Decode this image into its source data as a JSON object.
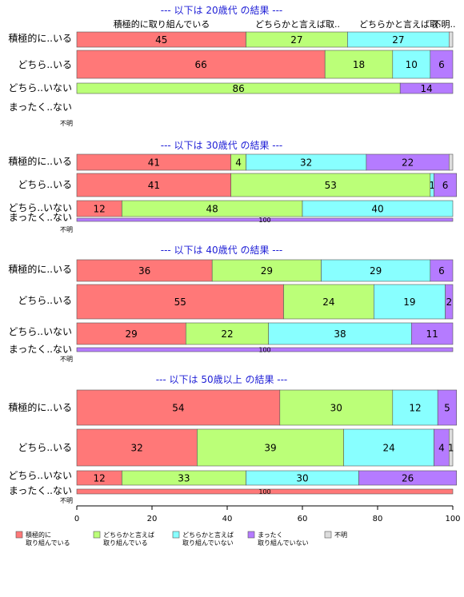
{
  "chart_data": {
    "type": "bar",
    "orientation": "horizontal",
    "stacked": true,
    "xlim": [
      0,
      100
    ],
    "x_ticks": [
      0,
      20,
      40,
      60,
      80,
      100
    ],
    "column_headers": [
      "積極的に取り組んでいる",
      "どちらかと言えば取..",
      "どちらかと言えば取..",
      "不明.."
    ],
    "categories": [
      "積極的に..いる",
      "どちら..いる",
      "どちら..いない",
      "まったく..ない",
      "不明"
    ],
    "legend": {
      "placement": "bottom",
      "entries": [
        {
          "line1": "積極的に",
          "line2": "取り組んでいる",
          "color": "#ff7878"
        },
        {
          "line1": "どちらかと言えば",
          "line2": "取り組んでいる",
          "color": "#bbff78"
        },
        {
          "line1": "どちらかと言えば",
          "line2": "取り組んでいない",
          "color": "#88ffff"
        },
        {
          "line1": "まったく",
          "line2": "取り組んでいない",
          "color": "#b57bff"
        },
        {
          "line1": "不明",
          "line2": "",
          "color": "#dddddd"
        }
      ]
    },
    "panels": [
      {
        "title": "--- 以下は 20歳代 の結果 ---",
        "rows": [
          {
            "values": [
              45,
              27,
              27,
              0,
              1
            ],
            "labels": [
              "45",
              "27",
              "27",
              "",
              ""
            ]
          },
          {
            "values": [
              66,
              18,
              10,
              6,
              0
            ],
            "labels": [
              "66",
              "18",
              "10",
              "6",
              ""
            ]
          },
          {
            "values": [
              0,
              86,
              0,
              14,
              0
            ],
            "labels": [
              "",
              "86",
              "",
              "14",
              ""
            ]
          },
          {
            "values": [
              0,
              0,
              0,
              0,
              0
            ],
            "labels": [
              "",
              "",
              "",
              "",
              ""
            ]
          },
          {
            "values": [
              0,
              0,
              0,
              0,
              0
            ],
            "labels": [
              "",
              "",
              "",
              "",
              ""
            ]
          }
        ]
      },
      {
        "title": "--- 以下は 30歳代 の結果 ---",
        "rows": [
          {
            "values": [
              41,
              4,
              32,
              22,
              1
            ],
            "labels": [
              "41",
              "4",
              "32",
              "22",
              ""
            ]
          },
          {
            "values": [
              41,
              53,
              1,
              6,
              0
            ],
            "labels": [
              "41",
              "53",
              "1",
              "6",
              ""
            ]
          },
          {
            "values": [
              12,
              48,
              40,
              0,
              0
            ],
            "labels": [
              "12",
              "48",
              "40",
              "",
              ""
            ]
          },
          {
            "values": [
              0,
              0,
              0,
              100,
              0
            ],
            "labels": [
              "",
              "",
              "",
              "100",
              ""
            ]
          },
          {
            "values": [
              0,
              0,
              0,
              0,
              0
            ],
            "labels": [
              "",
              "",
              "",
              "",
              ""
            ]
          }
        ]
      },
      {
        "title": "--- 以下は 40歳代 の結果 ---",
        "rows": [
          {
            "values": [
              36,
              29,
              29,
              6,
              0
            ],
            "labels": [
              "36",
              "29",
              "29",
              "6",
              ""
            ]
          },
          {
            "values": [
              55,
              24,
              19,
              2,
              0
            ],
            "labels": [
              "55",
              "24",
              "19",
              "2",
              ""
            ]
          },
          {
            "values": [
              29,
              22,
              38,
              11,
              0
            ],
            "labels": [
              "29",
              "22",
              "38",
              "11",
              ""
            ]
          },
          {
            "values": [
              0,
              0,
              0,
              100,
              0
            ],
            "labels": [
              "",
              "",
              "",
              "100",
              ""
            ]
          },
          {
            "values": [
              0,
              0,
              0,
              0,
              0
            ],
            "labels": [
              "",
              "",
              "",
              "",
              ""
            ]
          }
        ]
      },
      {
        "title": "--- 以下は 50歳以上 の結果 ---",
        "rows": [
          {
            "values": [
              54,
              30,
              12,
              5,
              0
            ],
            "labels": [
              "54",
              "30",
              "12",
              "5",
              ""
            ]
          },
          {
            "values": [
              32,
              39,
              24,
              4,
              1
            ],
            "labels": [
              "32",
              "39",
              "24",
              "4",
              "1"
            ]
          },
          {
            "values": [
              12,
              33,
              30,
              26,
              0
            ],
            "labels": [
              "12",
              "33",
              "30",
              "26",
              ""
            ]
          },
          {
            "values": [
              100,
              0,
              0,
              0,
              0
            ],
            "labels": [
              "100",
              "",
              "",
              "",
              ""
            ]
          },
          {
            "values": [
              0,
              0,
              0,
              0,
              0
            ],
            "labels": [
              "",
              "",
              "",
              "",
              ""
            ]
          }
        ]
      }
    ]
  }
}
